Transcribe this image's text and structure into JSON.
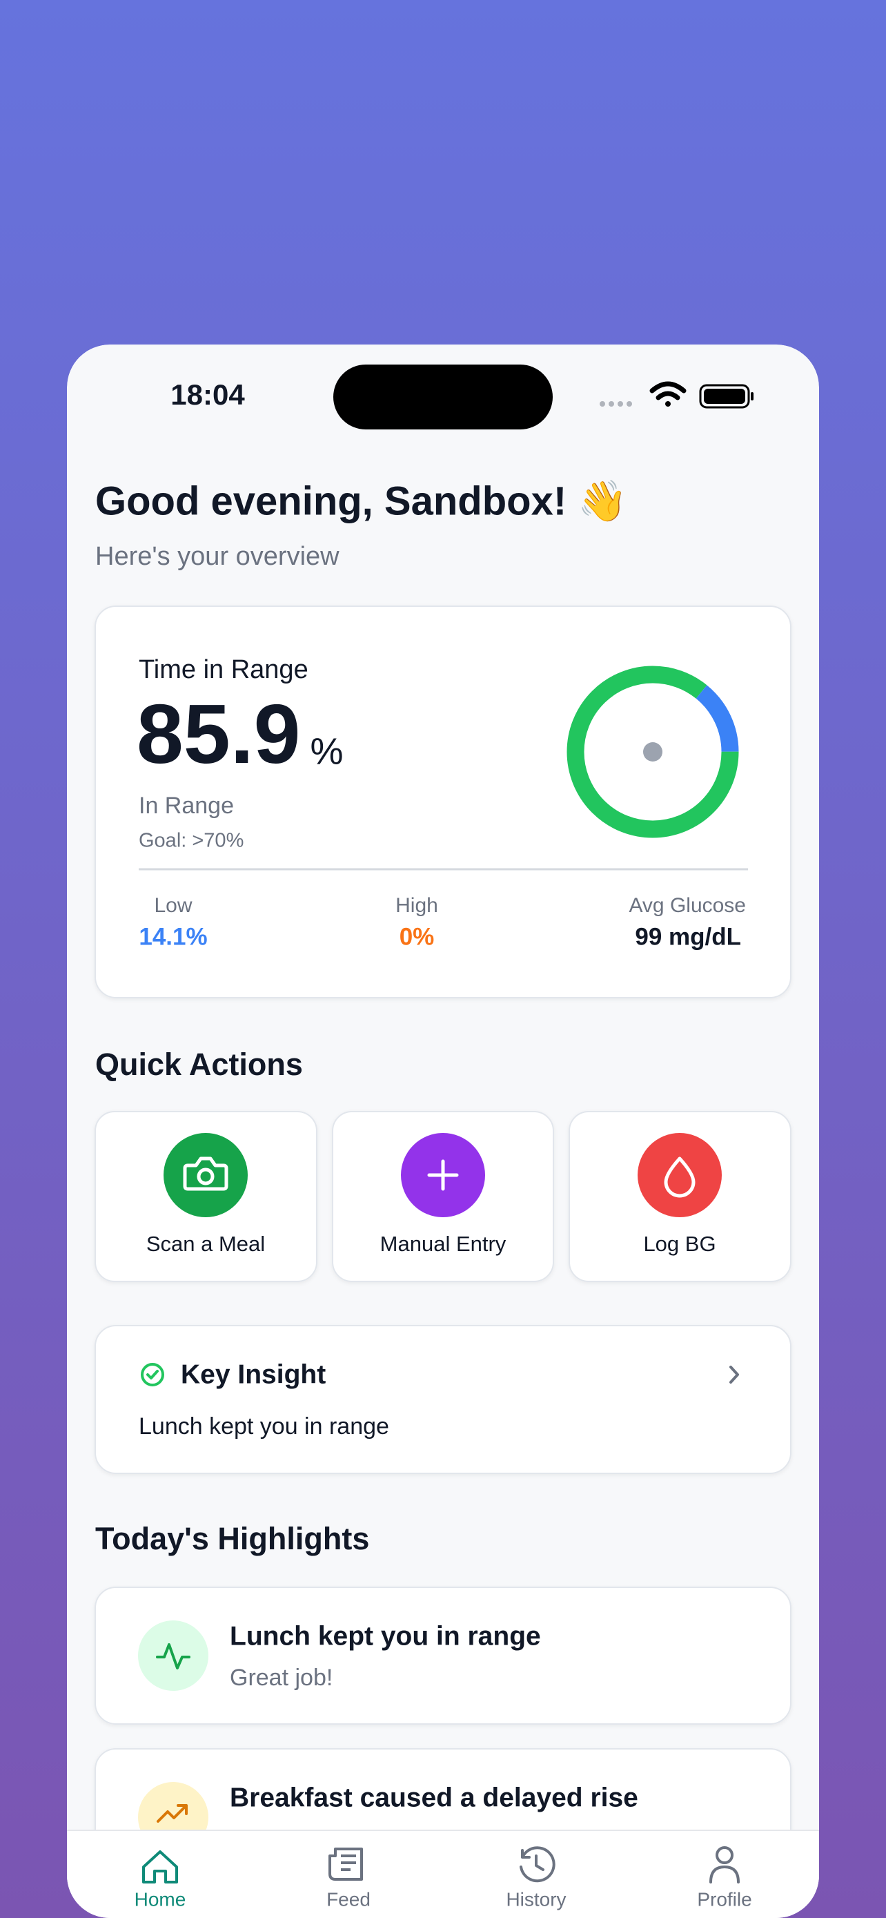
{
  "status_bar": {
    "time": "18:04"
  },
  "header": {
    "greeting": "Good evening, Sandbox! 👋",
    "subtitle": "Here's your overview"
  },
  "time_in_range": {
    "title": "Time in Range",
    "value": 85.9,
    "unit": "%",
    "caption": "In Range",
    "goal": "Goal: >70%",
    "in_range_color": "#22c55e",
    "stats": [
      {
        "label": "Low",
        "value": 14.1,
        "value_label": "14.1%",
        "color": "#3b82f6"
      },
      {
        "label": "High",
        "value": 0,
        "value_label": "0%",
        "color": "#f97316"
      },
      {
        "label": "Avg Glucose",
        "value_label": "99 mg/dL"
      }
    ]
  },
  "quick_actions": {
    "title": "Quick Actions",
    "items": [
      {
        "label": "Scan a Meal"
      },
      {
        "label": "Manual Entry"
      },
      {
        "label": "Log BG"
      }
    ]
  },
  "key_insight": {
    "title": "Key Insight",
    "text": "Lunch kept you in range"
  },
  "highlights": {
    "title": "Today's Highlights",
    "items": [
      {
        "title": "Lunch kept you in range",
        "subtitle": "Great job!"
      },
      {
        "title": "Breakfast caused a delayed rise"
      }
    ]
  },
  "tab_bar": {
    "tabs": [
      "Home",
      "Feed",
      "History",
      "Profile"
    ],
    "active": 0
  }
}
